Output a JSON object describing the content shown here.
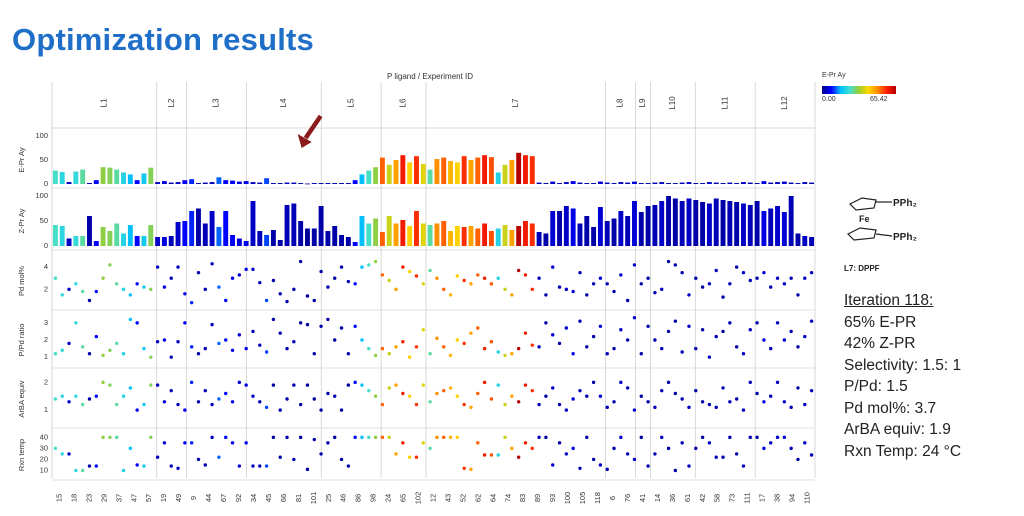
{
  "page": {
    "title": "Optimization results",
    "top_axis_label": "P ligand / Experiment ID",
    "colorbar": {
      "title": "E-Pr Ay",
      "min_label": "0.00",
      "max_label": "65.42"
    },
    "molecule": {
      "pph2_top": "PPh₂",
      "fe": "Fe",
      "pph2_bottom": "PPh₂",
      "caption": "L7: DPPF"
    },
    "annotation": {
      "heading": "Iteration 118:",
      "lines": [
        "65% E-PR",
        "42% Z-PR",
        "Selectivity: 1.5: 1",
        "P/Pd: 1.5",
        "Pd mol%: 3.7",
        "ArBA equiv: 1.9",
        "Rxn Temp: 24 °C"
      ]
    }
  },
  "chart_data": {
    "type": "bar",
    "title": "",
    "x_axis_label": "P ligand / Experiment ID",
    "highlight_experiment": "118",
    "colormap": {
      "min": 0.0,
      "max": 65.42,
      "variable": "E-Pr Ay"
    },
    "groups": [
      {
        "name": "L1",
        "ids": [
          "15",
          "18",
          "23",
          "29",
          "37",
          "47",
          "57"
        ]
      },
      {
        "name": "L2",
        "ids": [
          "19",
          "49"
        ]
      },
      {
        "name": "L3",
        "ids": [
          "9",
          "44",
          "67",
          "92"
        ]
      },
      {
        "name": "L4",
        "ids": [
          "34",
          "45",
          "66",
          "81",
          "101"
        ]
      },
      {
        "name": "L5",
        "ids": [
          "25",
          "46",
          "86",
          "98"
        ]
      },
      {
        "name": "L6",
        "ids": [
          "24",
          "65",
          "102"
        ]
      },
      {
        "name": "L7",
        "ids": [
          "12",
          "43",
          "52",
          "62",
          "64",
          "74",
          "83",
          "89",
          "93",
          "100",
          "105",
          "118"
        ]
      },
      {
        "name": "L8",
        "ids": [
          "6",
          "76"
        ]
      },
      {
        "name": "L9",
        "ids": [
          "41"
        ]
      },
      {
        "name": "L10",
        "ids": [
          "14",
          "36",
          "61"
        ]
      },
      {
        "name": "L11",
        "ids": [
          "42",
          "58",
          "73",
          "111"
        ]
      },
      {
        "name": "L12",
        "ids": [
          "17",
          "38",
          "94",
          "110"
        ]
      }
    ],
    "panels": [
      {
        "name": "E-Pr Ay",
        "kind": "bar",
        "ylim": [
          0,
          100
        ],
        "ticks": [
          "0",
          "50",
          "100"
        ]
      },
      {
        "name": "Z-Pr Ay",
        "kind": "bar",
        "ylim": [
          0,
          100
        ],
        "ticks": [
          "0",
          "50",
          "100"
        ]
      },
      {
        "name": "Pd mol%",
        "kind": "scatter",
        "ylim": [
          0.5,
          5
        ],
        "ticks": [
          "2",
          "4"
        ]
      },
      {
        "name": "P/Pd ratio",
        "kind": "scatter",
        "ylim": [
          0.6,
          3.4
        ],
        "ticks": [
          "1",
          "2",
          "3"
        ]
      },
      {
        "name": "ArBA equiv",
        "kind": "scatter",
        "ylim": [
          0.5,
          2.3
        ],
        "ticks": [
          "1",
          "2"
        ]
      },
      {
        "name": "Rxn temp",
        "kind": "scatter",
        "ylim": [
          5,
          43
        ],
        "ticks": [
          "10",
          "20",
          "30",
          "40"
        ]
      }
    ],
    "e_pr_values": [
      28,
      25,
      4,
      26,
      30,
      2,
      8,
      35,
      34,
      30,
      24,
      20,
      8,
      22,
      34,
      4,
      6,
      3,
      4,
      8,
      10,
      2,
      3,
      4,
      14,
      8,
      7,
      5,
      6,
      4,
      3,
      12,
      2,
      2,
      3,
      3,
      2,
      1,
      2,
      2,
      2,
      2,
      2,
      2,
      8,
      20,
      28,
      35,
      55,
      40,
      50,
      60,
      45,
      58,
      42,
      30,
      52,
      55,
      48,
      45,
      58,
      50,
      55,
      60,
      56,
      24,
      40,
      50,
      65,
      60,
      58,
      3,
      2,
      5,
      2,
      4,
      6,
      3,
      2,
      2,
      5,
      3,
      2,
      4,
      3,
      5,
      2,
      2,
      3,
      4,
      2,
      2,
      3,
      4,
      2,
      2,
      4,
      3,
      2,
      3,
      2,
      4,
      3,
      2,
      6,
      3,
      4,
      5,
      3,
      2,
      4,
      3
    ],
    "z_pr_values": [
      42,
      40,
      15,
      20,
      20,
      60,
      10,
      38,
      30,
      45,
      25,
      42,
      20,
      20,
      42,
      18,
      18,
      20,
      48,
      50,
      70,
      75,
      45,
      70,
      38,
      70,
      22,
      15,
      10,
      90,
      30,
      22,
      32,
      12,
      82,
      85,
      50,
      35,
      35,
      80,
      30,
      40,
      22,
      18,
      8,
      60,
      45,
      55,
      28,
      60,
      45,
      52,
      40,
      70,
      45,
      42,
      45,
      50,
      30,
      40,
      38,
      40,
      35,
      45,
      30,
      35,
      42,
      32,
      40,
      50,
      45,
      28,
      25,
      70,
      70,
      80,
      75,
      45,
      60,
      38,
      78,
      50,
      55,
      70,
      60,
      90,
      68,
      80,
      82,
      90,
      100,
      95,
      90,
      95,
      92,
      88,
      85,
      95,
      92,
      90,
      88,
      85,
      82,
      90,
      70,
      75,
      80,
      68,
      100,
      25,
      20,
      18
    ],
    "pd_values": [
      3.0,
      1.5,
      2.0,
      2.5,
      1.8,
      1.0,
      1.8,
      3.0,
      4.2,
      2.5,
      2.0,
      1.5,
      2.5,
      2.2,
      2.0,
      4.0,
      2.2,
      3.0,
      4.0,
      1.6,
      0.8,
      3.5,
      2.0,
      4.3,
      2.2,
      1.0,
      3.0,
      3.3,
      3.8,
      3.8,
      2.6,
      1.0,
      2.8,
      1.6,
      0.9,
      2.0,
      4.5,
      1.4,
      1.0,
      3.6,
      2.2,
      3.0,
      4.0,
      2.7,
      2.5,
      4.0,
      4.2,
      4.5,
      3.3,
      2.8,
      2.0,
      4.0,
      3.6,
      3.2,
      2.5,
      3.7,
      3.0,
      2.0,
      1.5,
      3.2,
      2.8,
      2.5,
      3.3,
      3.0,
      2.5,
      3.0,
      2.0,
      1.5,
      3.7,
      3.3,
      2.0,
      3.0,
      1.5,
      4.0,
      2.2,
      2.0,
      1.8,
      3.5,
      1.5,
      2.5,
      3.0,
      2.5,
      1.8,
      3.3,
      1.0,
      4.2,
      2.5,
      3.0,
      1.7,
      2.0,
      4.5,
      4.2,
      3.5,
      1.5,
      3.0,
      2.2,
      2.5,
      3.7,
      1.3,
      2.5,
      4.0,
      3.5,
      2.8,
      3.0,
      3.5,
      2.2,
      3.0,
      2.5,
      3.0,
      1.5,
      3.0,
      3.5
    ],
    "ppd_values": [
      1.2,
      1.4,
      1.8,
      3.0,
      1.6,
      1.2,
      2.2,
      1.1,
      1.4,
      1.8,
      1.2,
      3.2,
      3.0,
      1.5,
      1.0,
      1.9,
      2.0,
      1.0,
      1.9,
      3.0,
      1.6,
      1.2,
      1.5,
      2.9,
      1.8,
      2.0,
      1.4,
      2.3,
      1.5,
      2.5,
      1.7,
      1.3,
      3.2,
      2.4,
      1.5,
      1.9,
      3.0,
      2.9,
      1.2,
      2.8,
      3.2,
      2.0,
      2.7,
      1.2,
      2.8,
      2.0,
      1.5,
      1.1,
      1.5,
      1.2,
      1.6,
      1.9,
      1.0,
      1.6,
      2.6,
      1.2,
      2.1,
      1.6,
      1.1,
      2.0,
      1.8,
      2.4,
      2.7,
      1.5,
      1.9,
      1.3,
      1.1,
      1.2,
      1.5,
      2.4,
      1.7,
      1.6,
      3.0,
      2.3,
      1.8,
      2.7,
      1.2,
      3.1,
      1.6,
      2.2,
      2.8,
      1.2,
      1.5,
      2.6,
      2.0,
      3.3,
      1.2,
      2.8,
      2.0,
      1.5,
      2.5,
      3.1,
      1.3,
      2.8,
      1.5,
      2.6,
      1.0,
      2.2,
      2.5,
      3.0,
      1.6,
      1.2,
      2.6,
      3.0,
      2.0,
      1.5,
      3.0,
      2.0,
      2.5,
      1.6,
      2.2,
      3.1
    ],
    "arba_values": [
      1.4,
      1.5,
      1.3,
      1.5,
      1.2,
      1.4,
      1.5,
      2.0,
      1.9,
      1.2,
      1.5,
      1.8,
      1.0,
      1.2,
      1.9,
      1.9,
      1.3,
      1.7,
      1.2,
      1.0,
      2.0,
      1.3,
      1.7,
      1.2,
      1.4,
      1.6,
      1.3,
      2.0,
      1.9,
      1.5,
      1.3,
      1.1,
      1.9,
      1.0,
      1.4,
      1.9,
      1.2,
      1.9,
      1.4,
      1.0,
      1.6,
      1.5,
      1.0,
      1.9,
      2.0,
      1.9,
      1.7,
      1.5,
      1.2,
      1.8,
      1.9,
      1.6,
      1.5,
      1.2,
      1.9,
      1.3,
      1.6,
      1.7,
      1.8,
      1.5,
      1.2,
      1.1,
      1.6,
      2.0,
      1.4,
      1.9,
      1.2,
      1.5,
      1.3,
      1.9,
      1.7,
      1.2,
      1.5,
      1.8,
      1.2,
      1.0,
      1.4,
      1.7,
      1.5,
      2.0,
      1.5,
      1.1,
      1.3,
      2.0,
      1.8,
      1.0,
      1.5,
      1.3,
      1.1,
      1.7,
      2.0,
      1.6,
      1.4,
      1.1,
      1.7,
      1.3,
      1.2,
      1.1,
      1.8,
      1.3,
      1.4,
      1.0,
      2.0,
      1.6,
      1.3,
      1.5,
      2.0,
      1.3,
      1.1,
      1.8,
      1.2,
      1.7
    ],
    "temp_values": [
      30,
      25,
      25,
      10,
      10,
      14,
      14,
      40,
      40,
      40,
      10,
      30,
      15,
      14,
      40,
      22,
      35,
      14,
      12,
      35,
      35,
      20,
      15,
      40,
      22,
      40,
      35,
      14,
      35,
      14,
      14,
      14,
      40,
      22,
      40,
      20,
      40,
      11,
      38,
      25,
      35,
      40,
      20,
      14,
      40,
      40,
      40,
      40,
      40,
      40,
      25,
      35,
      22,
      22,
      35,
      30,
      40,
      40,
      40,
      40,
      12,
      11,
      35,
      24,
      24,
      24,
      40,
      30,
      22,
      35,
      30,
      40,
      40,
      15,
      35,
      25,
      30,
      12,
      40,
      20,
      15,
      11,
      30,
      40,
      25,
      20,
      40,
      14,
      25,
      40,
      30,
      10,
      35,
      14,
      30,
      40,
      35,
      22,
      22,
      40,
      25,
      14,
      40,
      40,
      30,
      35,
      40,
      40,
      30,
      20,
      35,
      24
    ]
  }
}
